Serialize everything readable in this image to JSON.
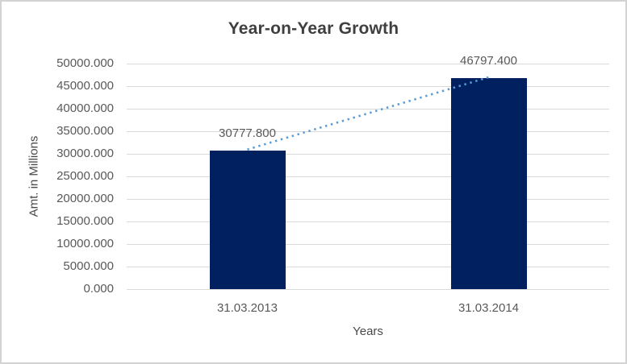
{
  "window": {
    "background": "#ffffff",
    "border_color": "#d3d3d3"
  },
  "chart_data": {
    "type": "bar",
    "title": "Year-on-Year Growth",
    "categories": [
      "31.03.2013",
      "31.03.2014"
    ],
    "values": [
      30777.8,
      46797.4
    ],
    "data_labels": [
      "30777.800",
      "46797.400"
    ],
    "xlabel": "Years",
    "ylabel": "Amt. in Millions",
    "ylim": [
      0,
      50000
    ],
    "ytick_step": 5000,
    "ytick_format_decimals": 3,
    "grid": "horizontal",
    "legend": "none",
    "bar_color": "#002060",
    "gridline_color": "#d9d9d9",
    "label_color": "#595959",
    "title_color": "#3f3f3f",
    "trendline": {
      "style": "dotted",
      "color": "#5b9bd5",
      "from": "top of bar 31.03.2013",
      "to": "top of bar 31.03.2014"
    }
  }
}
